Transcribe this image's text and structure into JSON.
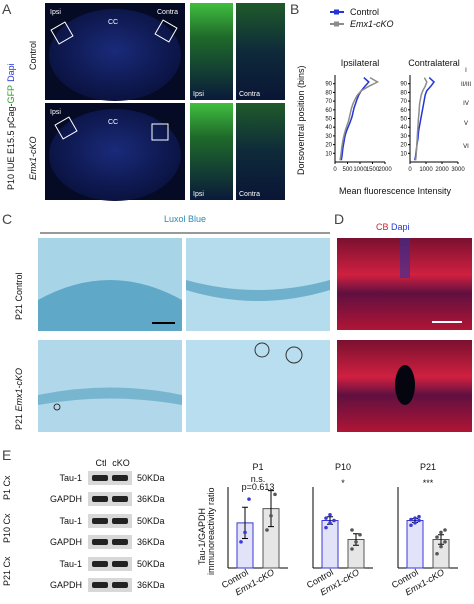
{
  "panel_a": {
    "label": "A",
    "side_label": [
      "P10 IUE E15.5 pCag-",
      "GFP",
      "Dapi"
    ],
    "rows": [
      {
        "group": "Control",
        "brain_labels": [
          "Ipsi",
          "CC",
          "Contra"
        ],
        "zoom_labels": [
          "Ipsi",
          "Contra"
        ]
      },
      {
        "group": "Emx1-cKO",
        "brain_labels": [
          "Ipsi",
          "CC"
        ],
        "zoom_labels": [
          "Ipsi",
          "Contra"
        ]
      }
    ]
  },
  "panel_b": {
    "label": "B",
    "type": "line",
    "series": [
      {
        "name": "Control",
        "color": "#2335d6"
      },
      {
        "name": "Emx1-cKO",
        "color": "#8c8c8c"
      }
    ],
    "y_label": "Dorsoventral position (bins)",
    "x_label": "Mean fluorescence Intensity",
    "layer_labels": [
      "I",
      "II/III",
      "IV",
      "V",
      "VI"
    ],
    "ylim": [
      0,
      100
    ],
    "yticks": [
      10,
      20,
      30,
      40,
      50,
      60,
      70,
      80,
      90
    ],
    "bins": [
      2,
      7,
      12,
      17,
      22,
      27,
      32,
      37,
      42,
      47,
      52,
      57,
      62,
      67,
      72,
      77,
      82,
      87,
      92,
      97
    ],
    "subplots": [
      {
        "title": "Ipsilateral",
        "xlim": [
          0,
          2000
        ],
        "xticks": [
          0,
          500,
          1000,
          1500,
          2000
        ],
        "lines": [
          [
            250,
            280,
            300,
            320,
            350,
            380,
            420,
            480,
            550,
            620,
            680,
            720,
            760,
            820,
            880,
            950,
            1050,
            1200,
            1350,
            1150
          ],
          [
            200,
            230,
            250,
            270,
            300,
            330,
            370,
            420,
            480,
            540,
            580,
            620,
            660,
            720,
            800,
            900,
            1050,
            1350,
            1700,
            1400
          ]
        ]
      },
      {
        "title": "Contralateral",
        "xlim": [
          0,
          3000
        ],
        "xticks": [
          0,
          1000,
          2000,
          3000
        ],
        "lines": [
          [
            300,
            350,
            380,
            420,
            450,
            500,
            520,
            550,
            600,
            650,
            700,
            750,
            800,
            850,
            900,
            950,
            1050,
            1300,
            1500,
            1200
          ],
          [
            350,
            380,
            400,
            420,
            430,
            450,
            460,
            480,
            500,
            520,
            540,
            560,
            580,
            600,
            650,
            700,
            800,
            950,
            1050,
            900
          ]
        ]
      }
    ]
  },
  "panel_c": {
    "label": "C",
    "title": "Luxol Blue",
    "rows": [
      {
        "age": "P21",
        "group": "Control"
      },
      {
        "age": "P21",
        "group": "Emx1-cKO"
      }
    ]
  },
  "panel_d": {
    "label": "D",
    "stain": "CB",
    "counterstain": "Dapi"
  },
  "panel_e": {
    "label": "E",
    "lanes": [
      "Ctl",
      "cKO"
    ],
    "blots": [
      {
        "age": "P1 Cx",
        "rows": [
          {
            "protein": "Tau-1",
            "size": "50KDa"
          },
          {
            "protein": "GAPDH",
            "size": "36KDa"
          }
        ]
      },
      {
        "age": "P10 Cx",
        "rows": [
          {
            "protein": "Tau-1",
            "size": "50KDa"
          },
          {
            "protein": "GAPDH",
            "size": "36KDa"
          }
        ]
      },
      {
        "age": "P21 Cx",
        "rows": [
          {
            "protein": "Tau-1",
            "size": "50KDa"
          },
          {
            "protein": "GAPDH",
            "size": "36KDa"
          }
        ]
      }
    ],
    "type": "bar",
    "y_label": [
      "Tau-1/GAPDH",
      "immunoreactivity ratio"
    ],
    "categories": [
      "Control",
      "Emx1-cKO"
    ],
    "colors": [
      "#3a3ad6",
      "#555555"
    ],
    "ylim": [
      0,
      1.6
    ],
    "charts": [
      {
        "title": "P1",
        "annotation": [
          "n.s.",
          "p=0.613"
        ],
        "values": [
          0.95,
          1.25
        ],
        "errors": [
          0.33,
          0.38
        ],
        "points": [
          [
            0.55,
            0.75,
            1.45
          ],
          [
            0.8,
            1.1,
            1.55
          ]
        ]
      },
      {
        "title": "P10",
        "annotation": [
          "*"
        ],
        "values": [
          1.0,
          0.6
        ],
        "errors": [
          0.08,
          0.12
        ],
        "points": [
          [
            0.85,
            0.95,
            1.0,
            1.05,
            1.12
          ],
          [
            0.4,
            0.55,
            0.7,
            0.8
          ]
        ]
      },
      {
        "title": "P21",
        "annotation": [
          "***"
        ],
        "values": [
          1.0,
          0.6
        ],
        "errors": [
          0.04,
          0.1
        ],
        "points": [
          [
            0.9,
            0.95,
            1.0,
            1.02,
            1.05,
            1.08
          ],
          [
            0.3,
            0.45,
            0.55,
            0.65,
            0.75,
            0.8
          ]
        ]
      }
    ]
  }
}
